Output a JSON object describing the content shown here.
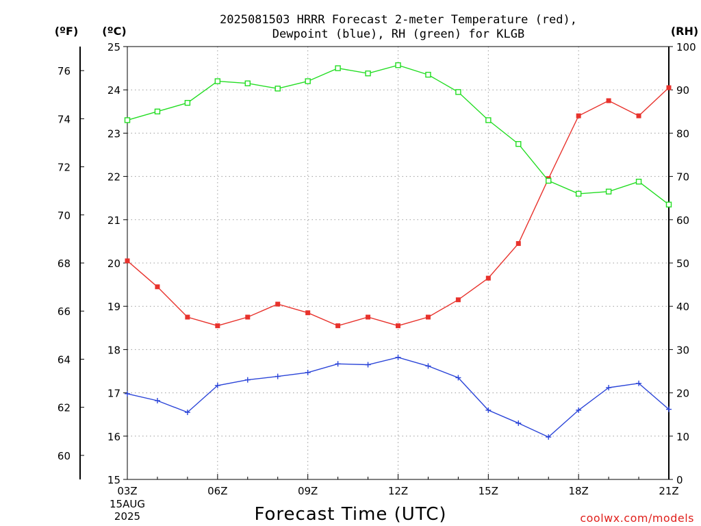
{
  "chart_data": {
    "type": "line",
    "title_line1": "2025081503 HRRR Forecast 2-meter Temperature (red),",
    "title_line2": "Dewpoint (blue), RH (green) for KLGB",
    "xlabel": "Forecast Time (UTC)",
    "credit": "coolwx.com/models",
    "left_units": "(ºF)",
    "center_units": "(ºC)",
    "right_units": "(RH)",
    "date_label_line1": "15AUG",
    "date_label_line2": "2025",
    "x": [
      "03Z",
      "04Z",
      "05Z",
      "06Z",
      "07Z",
      "08Z",
      "09Z",
      "10Z",
      "11Z",
      "12Z",
      "13Z",
      "14Z",
      "15Z",
      "16Z",
      "17Z",
      "18Z",
      "19Z",
      "20Z",
      "21Z"
    ],
    "x_tick_labels": [
      "03Z",
      "06Z",
      "09Z",
      "12Z",
      "15Z",
      "18Z",
      "21Z"
    ],
    "celsius_axis": {
      "range": [
        15,
        25
      ],
      "ticks": [
        15,
        16,
        17,
        18,
        19,
        20,
        21,
        22,
        23,
        24,
        25
      ]
    },
    "fahrenheit_axis": {
      "ticks": [
        60,
        62,
        64,
        66,
        68,
        70,
        72,
        74,
        76
      ]
    },
    "rh_axis": {
      "range": [
        0,
        100
      ],
      "ticks": [
        0,
        10,
        20,
        30,
        40,
        50,
        60,
        70,
        80,
        90,
        100
      ]
    },
    "grid": true,
    "series": [
      {
        "name": "Temperature",
        "axis": "celsius",
        "color": "#e8322c",
        "marker": "filled-square",
        "values": [
          20.05,
          19.45,
          18.75,
          18.55,
          18.75,
          19.05,
          18.85,
          18.55,
          18.75,
          18.55,
          18.75,
          19.15,
          19.65,
          20.45,
          21.95,
          23.4,
          23.75,
          23.4,
          24.05
        ]
      },
      {
        "name": "Dewpoint",
        "axis": "celsius",
        "color": "#2a44d8",
        "marker": "plus",
        "values": [
          16.98,
          16.82,
          16.55,
          17.17,
          17.3,
          17.38,
          17.47,
          17.67,
          17.65,
          17.82,
          17.62,
          17.35,
          16.6,
          16.3,
          15.98,
          16.6,
          17.12,
          17.22,
          16.62
        ]
      },
      {
        "name": "RH",
        "axis": "rh",
        "color": "#22dd22",
        "marker": "open-square",
        "values": [
          83,
          85,
          87,
          92,
          91.5,
          90.3,
          92,
          95,
          93.8,
          95.7,
          93.5,
          89.5,
          83,
          77.5,
          69,
          66,
          66.5,
          68.8,
          63.5
        ]
      }
    ]
  }
}
